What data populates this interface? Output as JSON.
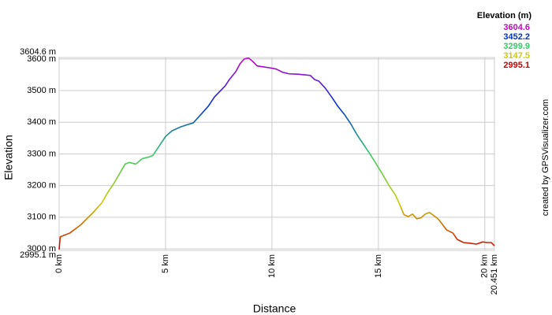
{
  "chart_data": {
    "type": "line",
    "x_label": "Distance",
    "y_label": "Elevation",
    "credit": "created by GPSVisualizer.com",
    "legend_title": "Elevation (m)",
    "legend_scale": [
      {
        "value": 3604.6,
        "color": "#cc00cc"
      },
      {
        "value": 3452.2,
        "color": "#0033cc"
      },
      {
        "value": 3299.9,
        "color": "#33cc66"
      },
      {
        "value": 3147.5,
        "color": "#cccc00"
      },
      {
        "value": 2995.1,
        "color": "#cc0000"
      }
    ],
    "xlim": [
      0,
      20.451
    ],
    "ylim": [
      2995.1,
      3604.6
    ],
    "xticks": [
      {
        "value": 0,
        "label": "0 km"
      },
      {
        "value": 5,
        "label": "5 km"
      },
      {
        "value": 10,
        "label": "10 km"
      },
      {
        "value": 15,
        "label": "15 km"
      },
      {
        "value": 20,
        "label": "20 km"
      },
      {
        "value": 20.451,
        "label": "20.451 km"
      }
    ],
    "yticks": [
      {
        "value": 2995.1,
        "label": "2995.1 m"
      },
      {
        "value": 3000,
        "label": "3000 m"
      },
      {
        "value": 3100,
        "label": "3100 m"
      },
      {
        "value": 3200,
        "label": "3200 m"
      },
      {
        "value": 3300,
        "label": "3300 m"
      },
      {
        "value": 3400,
        "label": "3400 m"
      },
      {
        "value": 3500,
        "label": "3500 m"
      },
      {
        "value": 3600,
        "label": "3600 m"
      },
      {
        "value": 3604.6,
        "label": "3604.6 m"
      }
    ],
    "grid": true,
    "series": [
      {
        "name": "Elevation",
        "x": [
          0,
          0.05,
          0.5,
          0.8,
          1.0,
          1.3,
          1.6,
          2.0,
          2.3,
          2.6,
          2.9,
          3.1,
          3.3,
          3.6,
          3.9,
          4.2,
          4.4,
          4.7,
          5.0,
          5.3,
          5.7,
          6.0,
          6.3,
          6.6,
          7.0,
          7.3,
          7.8,
          8.0,
          8.3,
          8.5,
          8.7,
          8.9,
          9.1,
          9.3,
          9.6,
          9.9,
          10.2,
          10.5,
          10.8,
          11.2,
          11.5,
          11.8,
          12.0,
          12.2,
          12.5,
          12.8,
          13.1,
          13.4,
          13.7,
          14.0,
          14.3,
          14.6,
          14.9,
          15.2,
          15.5,
          15.8,
          16.0,
          16.2,
          16.4,
          16.6,
          16.8,
          17.0,
          17.2,
          17.4,
          17.6,
          17.8,
          18.0,
          18.2,
          18.5,
          18.7,
          19.0,
          19.3,
          19.6,
          19.9,
          20.1,
          20.3,
          20.451
        ],
        "values": [
          2998,
          3038,
          3050,
          3065,
          3075,
          3095,
          3115,
          3145,
          3180,
          3210,
          3245,
          3268,
          3273,
          3268,
          3285,
          3290,
          3295,
          3325,
          3355,
          3373,
          3385,
          3392,
          3398,
          3420,
          3450,
          3480,
          3515,
          3535,
          3560,
          3585,
          3600,
          3603,
          3592,
          3578,
          3575,
          3572,
          3568,
          3558,
          3553,
          3552,
          3550,
          3548,
          3535,
          3530,
          3508,
          3480,
          3450,
          3425,
          3395,
          3360,
          3330,
          3300,
          3268,
          3235,
          3200,
          3170,
          3140,
          3108,
          3102,
          3110,
          3095,
          3098,
          3110,
          3115,
          3105,
          3095,
          3078,
          3060,
          3050,
          3030,
          3020,
          3018,
          3015,
          3022,
          3020,
          3020,
          3010
        ]
      }
    ]
  }
}
